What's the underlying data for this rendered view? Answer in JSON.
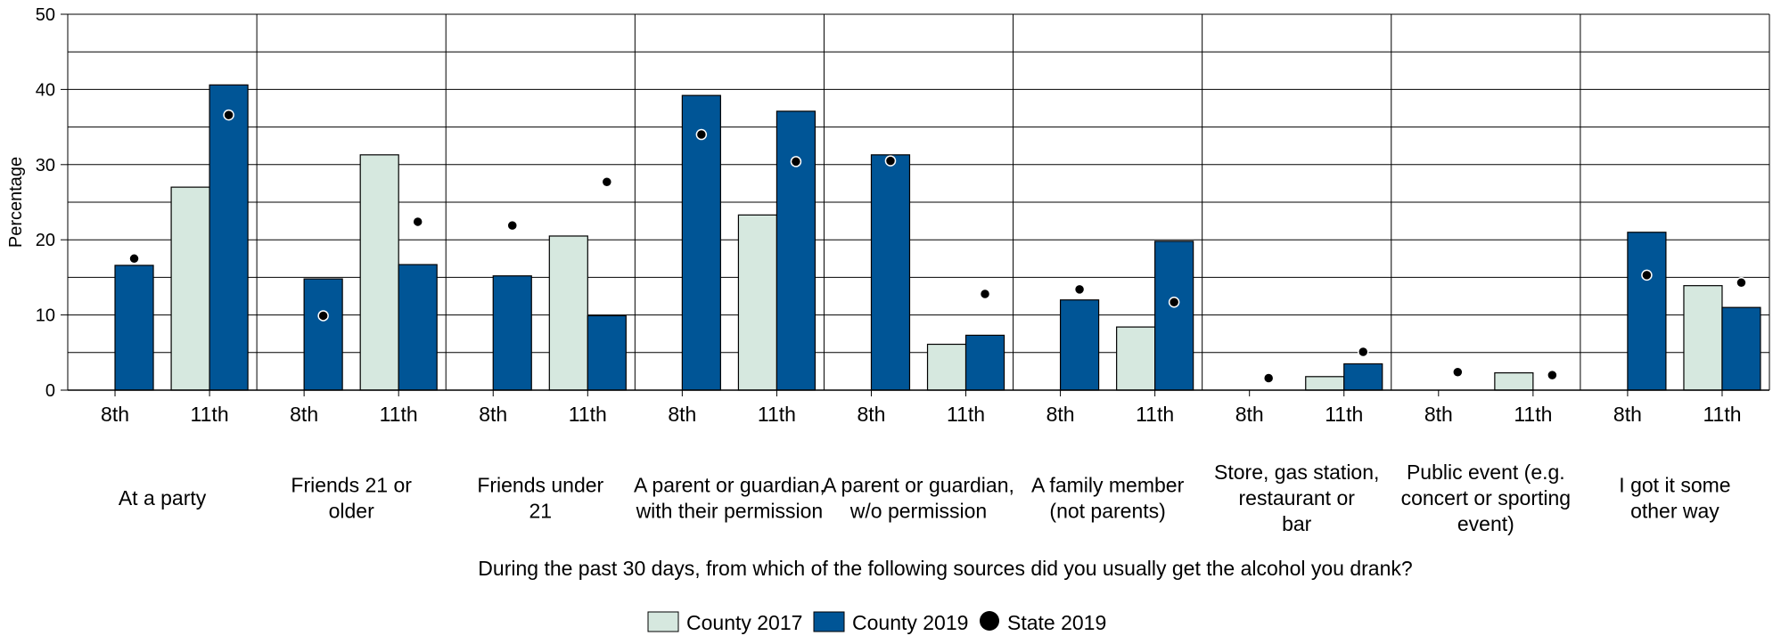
{
  "chart_data": {
    "type": "bar",
    "xlabel": "During the past 30 days, from which of the following sources did you usually get the alcohol you drank?",
    "ylabel": "Percentage",
    "ylim": [
      0,
      50
    ],
    "yticks": [
      "0",
      "10",
      "20",
      "30",
      "40",
      "50"
    ],
    "grid": true,
    "legend_position": "bottom",
    "groups": [
      {
        "label": [
          "At a party"
        ]
      },
      {
        "label": [
          "Friends 21 or",
          "older"
        ]
      },
      {
        "label": [
          "Friends under",
          "21"
        ]
      },
      {
        "label": [
          "A parent or guardian,",
          "with their permission"
        ]
      },
      {
        "label": [
          "A parent or guardian,",
          "w/o permission"
        ]
      },
      {
        "label": [
          "A family member",
          "(not parents)"
        ]
      },
      {
        "label": [
          "Store, gas station,",
          "restaurant or",
          "bar"
        ]
      },
      {
        "label": [
          "Public event (e.g.",
          "concert or sporting",
          "event)"
        ]
      },
      {
        "label": [
          "I got it some",
          "other way"
        ]
      }
    ],
    "subcategories": [
      "8th",
      "11th"
    ],
    "series": [
      {
        "name": "County 2017",
        "kind": "bar",
        "color": "#d6e8df",
        "values": [
          [
            null,
            27
          ],
          [
            null,
            31.3
          ],
          [
            null,
            20.5
          ],
          [
            null,
            23.3
          ],
          [
            null,
            6.1
          ],
          [
            null,
            8.4
          ],
          [
            null,
            1.8
          ],
          [
            null,
            2.3
          ],
          [
            null,
            13.9
          ]
        ]
      },
      {
        "name": "County 2019",
        "kind": "bar",
        "color": "#005596",
        "values": [
          [
            16.6,
            40.6
          ],
          [
            14.8,
            16.7
          ],
          [
            15.2,
            9.9
          ],
          [
            39.2,
            37.1
          ],
          [
            31.3,
            7.3
          ],
          [
            12,
            19.8
          ],
          [
            null,
            3.5
          ],
          [
            null,
            null
          ],
          [
            21,
            11
          ]
        ]
      },
      {
        "name": "State 2019",
        "kind": "dot",
        "color": "#000000",
        "values": [
          [
            17.5,
            36.6
          ],
          [
            9.9,
            22.4
          ],
          [
            21.9,
            27.7
          ],
          [
            34,
            30.4
          ],
          [
            30.5,
            12.8
          ],
          [
            13.4,
            11.7
          ],
          [
            1.6,
            5.1
          ],
          [
            2.4,
            2
          ],
          [
            15.3,
            14.3
          ]
        ]
      }
    ]
  }
}
